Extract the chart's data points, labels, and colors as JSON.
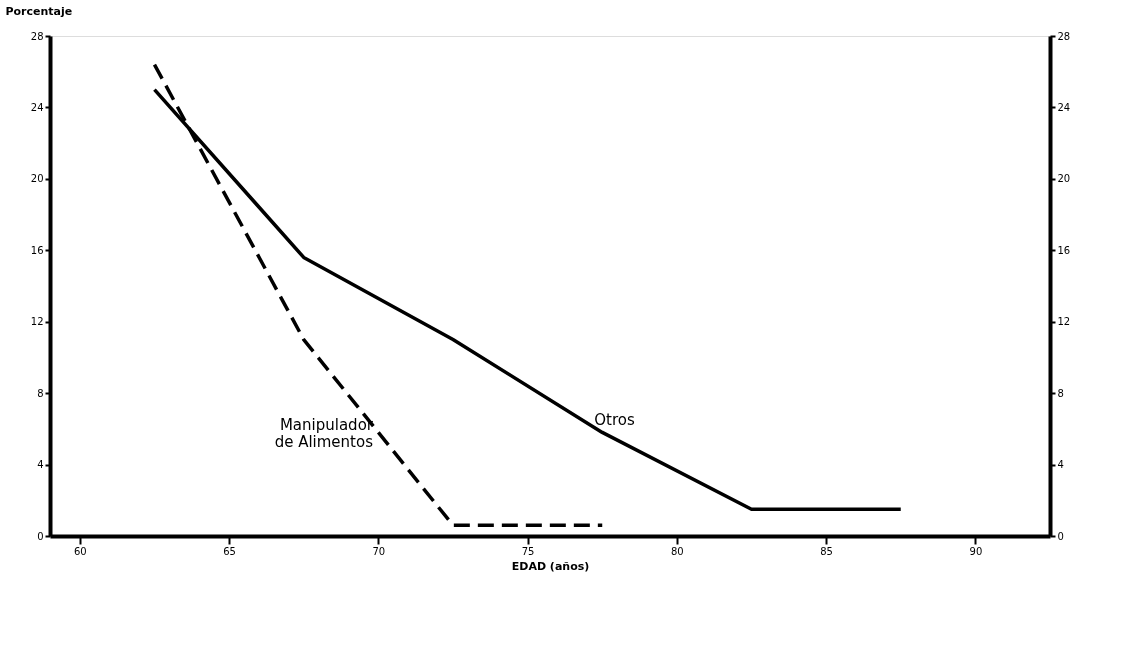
{
  "chart_data": {
    "type": "line",
    "xlabel": "EDAD (años)",
    "ylabel": "Porcentaje",
    "x": [
      62.5,
      67.5,
      72.5,
      77.5,
      82.5,
      87.5
    ],
    "series": [
      {
        "name": "Otros",
        "color": "#000000",
        "line_style": "solid",
        "values": [
          25,
          15.6,
          11,
          5.8,
          1.5,
          1.5
        ]
      },
      {
        "name": "Manipulador\nde Alimentos",
        "color": "#000000",
        "line_style": "dashed",
        "values": [
          26.4,
          11,
          0.6,
          0.6,
          null,
          null
        ]
      }
    ],
    "xlim": [
      59,
      92.5
    ],
    "xticks": [
      60,
      65,
      70,
      75,
      80,
      85,
      90
    ],
    "ylim": [
      0,
      28
    ],
    "yticks": [
      0,
      4,
      8,
      12,
      16,
      20,
      24,
      28
    ],
    "y2lim": [
      0,
      28
    ],
    "y2ticks": [
      0,
      4,
      8,
      12,
      16,
      20,
      24,
      28
    ],
    "grid": false,
    "marker": "none"
  }
}
